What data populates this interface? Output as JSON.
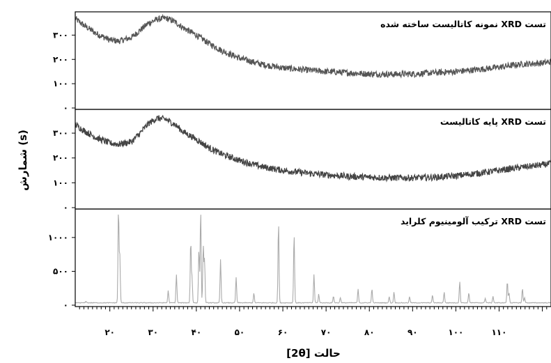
{
  "chart_data": {
    "type": "line",
    "xlabel": "حالت [2θ]",
    "ylabel": "شمارش (s)",
    "xlim": [
      12,
      122
    ],
    "x_ticks": [
      20,
      30,
      40,
      50,
      60,
      70,
      80,
      90,
      100,
      110
    ],
    "x_tick_labels": [
      "۲۰",
      "۳۰",
      "۴۰",
      "۵۰",
      "۶۰",
      "۷۰",
      "۸۰",
      "۹۰",
      "۱۰۰",
      "۱۱۰"
    ],
    "grid": false,
    "panels": [
      {
        "title": "تست XRD نمونه کاتالیست ساخته شده",
        "ylim": [
          0,
          390
        ],
        "y_ticks": [
          0,
          100,
          200,
          300
        ],
        "y_tick_labels": [
          "۰",
          "۱۰۰",
          "۲۰۰",
          "۳۰۰"
        ],
        "color": "#555555",
        "x": [
          12,
          14,
          17,
          20,
          22,
          25,
          27,
          29,
          31,
          33,
          35,
          37,
          40,
          43,
          46,
          50,
          55,
          60,
          65,
          70,
          75,
          80,
          85,
          90,
          95,
          100,
          105,
          110,
          115,
          120,
          122
        ],
        "values": [
          368,
          340,
          305,
          280,
          275,
          290,
          320,
          350,
          365,
          370,
          355,
          330,
          300,
          265,
          235,
          205,
          180,
          165,
          157,
          150,
          145,
          140,
          139,
          140,
          145,
          150,
          158,
          168,
          180,
          185,
          190
        ],
        "noise": 13
      },
      {
        "title": "تست XRD پایه کاتالیست",
        "ylim": [
          0,
          390
        ],
        "y_ticks": [
          0,
          100,
          200,
          300
        ],
        "y_tick_labels": [
          "۰",
          "۱۰۰",
          "۲۰۰",
          "۳۰۰"
        ],
        "color": "#444444",
        "x": [
          12,
          14,
          17,
          20,
          22,
          25,
          27,
          29,
          31,
          33,
          35,
          37,
          40,
          43,
          46,
          50,
          55,
          60,
          65,
          70,
          75,
          80,
          85,
          90,
          95,
          100,
          105,
          110,
          115,
          120,
          122
        ],
        "values": [
          335,
          310,
          280,
          260,
          255,
          265,
          300,
          340,
          360,
          355,
          335,
          305,
          275,
          240,
          215,
          190,
          165,
          150,
          140,
          132,
          126,
          122,
          120,
          120,
          122,
          128,
          138,
          150,
          162,
          172,
          178
        ],
        "noise": 13
      },
      {
        "title": "تست XRD ترکیب آلومینیوم کلراید",
        "ylim": [
          0,
          1400
        ],
        "y_ticks": [
          0,
          500,
          1000
        ],
        "y_tick_labels": [
          "۰",
          "۵۰۰",
          "۱۰۰۰"
        ],
        "color": "#aaaaaa",
        "baseline": 35,
        "noise": 10,
        "peaks": [
          {
            "x": 14.5,
            "h": 25
          },
          {
            "x": 22.0,
            "h": 1380
          },
          {
            "x": 22.3,
            "h": 700
          },
          {
            "x": 33.5,
            "h": 180
          },
          {
            "x": 35.4,
            "h": 420
          },
          {
            "x": 38.7,
            "h": 920
          },
          {
            "x": 39.0,
            "h": 380
          },
          {
            "x": 40.6,
            "h": 800
          },
          {
            "x": 41.0,
            "h": 1380
          },
          {
            "x": 41.6,
            "h": 850
          },
          {
            "x": 41.9,
            "h": 630
          },
          {
            "x": 45.6,
            "h": 640
          },
          {
            "x": 49.2,
            "h": 380
          },
          {
            "x": 53.3,
            "h": 140
          },
          {
            "x": 59.0,
            "h": 1200
          },
          {
            "x": 62.6,
            "h": 1030
          },
          {
            "x": 67.2,
            "h": 420
          },
          {
            "x": 68.3,
            "h": 130
          },
          {
            "x": 71.7,
            "h": 100
          },
          {
            "x": 73.3,
            "h": 80
          },
          {
            "x": 77.4,
            "h": 200
          },
          {
            "x": 80.6,
            "h": 210
          },
          {
            "x": 84.6,
            "h": 90
          },
          {
            "x": 85.7,
            "h": 160
          },
          {
            "x": 89.3,
            "h": 90
          },
          {
            "x": 94.6,
            "h": 110
          },
          {
            "x": 97.3,
            "h": 160
          },
          {
            "x": 100.9,
            "h": 320
          },
          {
            "x": 103.0,
            "h": 150
          },
          {
            "x": 106.8,
            "h": 70
          },
          {
            "x": 108.6,
            "h": 100
          },
          {
            "x": 111.9,
            "h": 320
          },
          {
            "x": 112.3,
            "h": 150
          },
          {
            "x": 115.4,
            "h": 210
          },
          {
            "x": 115.9,
            "h": 80
          }
        ]
      }
    ]
  }
}
